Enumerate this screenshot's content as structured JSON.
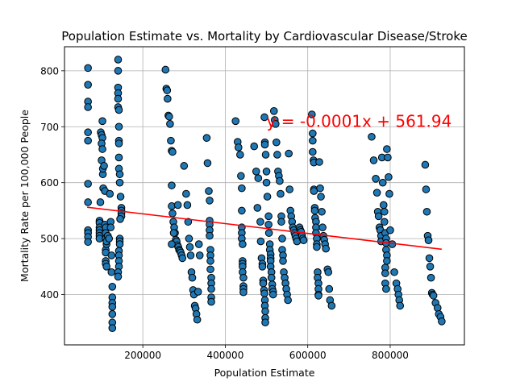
{
  "chart_data": {
    "type": "scatter",
    "title": "Population Estimate vs. Mortality by Cardiovascular Disease/Stroke",
    "xlabel": "Population Estimate",
    "ylabel": "Mortality Rate per 100,000 People",
    "xlim": [
      10000,
      980000
    ],
    "ylim": [
      310,
      843
    ],
    "xticks": [
      200000,
      400000,
      600000,
      800000
    ],
    "xtick_labels": [
      "200000",
      "400000",
      "600000",
      "800000"
    ],
    "yticks": [
      400,
      500,
      600,
      700,
      800
    ],
    "ytick_labels": [
      "400",
      "500",
      "600",
      "700",
      "800"
    ],
    "grid": true,
    "marker_color": "#1f77b4",
    "regression": {
      "equation": "y = -0.0001x + 561.94",
      "x_start": 65000,
      "x_end": 925000,
      "y_start": 556,
      "y_end": 481,
      "color": "#ff0000",
      "label_x": 500000,
      "label_y": 700
    },
    "points": [
      [
        67000,
        805
      ],
      [
        67000,
        775
      ],
      [
        67000,
        745
      ],
      [
        67000,
        735
      ],
      [
        67000,
        690
      ],
      [
        67000,
        675
      ],
      [
        67000,
        598
      ],
      [
        67000,
        565
      ],
      [
        67000,
        515
      ],
      [
        67000,
        510
      ],
      [
        67000,
        503
      ],
      [
        67000,
        494
      ],
      [
        95000,
        532
      ],
      [
        95000,
        528
      ],
      [
        95000,
        520
      ],
      [
        95000,
        515
      ],
      [
        95000,
        510
      ],
      [
        95000,
        505
      ],
      [
        95000,
        500
      ],
      [
        97000,
        565
      ],
      [
        98000,
        690
      ],
      [
        100000,
        685
      ],
      [
        102000,
        710
      ],
      [
        102000,
        680
      ],
      [
        100000,
        670
      ],
      [
        102000,
        660
      ],
      [
        100000,
        640
      ],
      [
        103000,
        615
      ],
      [
        103000,
        625
      ],
      [
        104000,
        590
      ],
      [
        106000,
        630
      ],
      [
        108000,
        585
      ],
      [
        108000,
        525
      ],
      [
        110000,
        520
      ],
      [
        110000,
        510
      ],
      [
        110000,
        500
      ],
      [
        110000,
        480
      ],
      [
        110000,
        475
      ],
      [
        110000,
        460
      ],
      [
        110000,
        455
      ],
      [
        112000,
        450
      ],
      [
        112000,
        490
      ],
      [
        112000,
        495
      ],
      [
        115000,
        505
      ],
      [
        118000,
        500
      ],
      [
        120000,
        580
      ],
      [
        122000,
        530
      ],
      [
        122000,
        520
      ],
      [
        124000,
        470
      ],
      [
        124000,
        440
      ],
      [
        126000,
        414
      ],
      [
        126000,
        395
      ],
      [
        126000,
        385
      ],
      [
        126000,
        378
      ],
      [
        126000,
        365
      ],
      [
        126000,
        350
      ],
      [
        126000,
        340
      ],
      [
        140000,
        820
      ],
      [
        140000,
        800
      ],
      [
        140000,
        770
      ],
      [
        140000,
        760
      ],
      [
        140000,
        750
      ],
      [
        140000,
        735
      ],
      [
        142000,
        730
      ],
      [
        142000,
        700
      ],
      [
        142000,
        675
      ],
      [
        142000,
        670
      ],
      [
        142000,
        645
      ],
      [
        142000,
        625
      ],
      [
        144000,
        615
      ],
      [
        144000,
        600
      ],
      [
        146000,
        575
      ],
      [
        148000,
        555
      ],
      [
        148000,
        550
      ],
      [
        148000,
        545
      ],
      [
        148000,
        540
      ],
      [
        145000,
        535
      ],
      [
        144000,
        500
      ],
      [
        144000,
        495
      ],
      [
        144000,
        490
      ],
      [
        142000,
        478
      ],
      [
        142000,
        470
      ],
      [
        142000,
        460
      ],
      [
        142000,
        450
      ],
      [
        140000,
        440
      ],
      [
        140000,
        432
      ],
      [
        255000,
        802
      ],
      [
        257000,
        768
      ],
      [
        259000,
        765
      ],
      [
        260000,
        750
      ],
      [
        262000,
        720
      ],
      [
        264000,
        718
      ],
      [
        266000,
        705
      ],
      [
        268000,
        675
      ],
      [
        270000,
        657
      ],
      [
        272000,
        655
      ],
      [
        270000,
        595
      ],
      [
        270000,
        558
      ],
      [
        272000,
        545
      ],
      [
        274000,
        530
      ],
      [
        276000,
        520
      ],
      [
        278000,
        510
      ],
      [
        280000,
        498
      ],
      [
        282000,
        495
      ],
      [
        284000,
        488
      ],
      [
        286000,
        485
      ],
      [
        288000,
        480
      ],
      [
        290000,
        478
      ],
      [
        292000,
        475
      ],
      [
        294000,
        470
      ],
      [
        296000,
        465
      ],
      [
        270000,
        490
      ],
      [
        275000,
        510
      ],
      [
        285000,
        560
      ],
      [
        300000,
        630
      ],
      [
        305000,
        580
      ],
      [
        308000,
        560
      ],
      [
        310000,
        530
      ],
      [
        312000,
        500
      ],
      [
        314000,
        485
      ],
      [
        316000,
        470
      ],
      [
        318000,
        440
      ],
      [
        320000,
        430
      ],
      [
        322000,
        408
      ],
      [
        324000,
        400
      ],
      [
        326000,
        380
      ],
      [
        328000,
        375
      ],
      [
        330000,
        365
      ],
      [
        332000,
        355
      ],
      [
        334000,
        405
      ],
      [
        336000,
        490
      ],
      [
        338000,
        470
      ],
      [
        355000,
        680
      ],
      [
        357000,
        635
      ],
      [
        360000,
        585
      ],
      [
        362000,
        568
      ],
      [
        362000,
        532
      ],
      [
        362000,
        525
      ],
      [
        362000,
        515
      ],
      [
        362000,
        505
      ],
      [
        364000,
        480
      ],
      [
        364000,
        470
      ],
      [
        364000,
        460
      ],
      [
        364000,
        445
      ],
      [
        366000,
        430
      ],
      [
        366000,
        420
      ],
      [
        366000,
        410
      ],
      [
        366000,
        395
      ],
      [
        366000,
        387
      ],
      [
        425000,
        710
      ],
      [
        430000,
        673
      ],
      [
        432000,
        663
      ],
      [
        436000,
        650
      ],
      [
        438000,
        612
      ],
      [
        440000,
        590
      ],
      [
        440000,
        550
      ],
      [
        440000,
        520
      ],
      [
        440000,
        510
      ],
      [
        440000,
        500
      ],
      [
        442000,
        490
      ],
      [
        442000,
        460
      ],
      [
        442000,
        455
      ],
      [
        442000,
        450
      ],
      [
        442000,
        440
      ],
      [
        444000,
        430
      ],
      [
        444000,
        415
      ],
      [
        444000,
        410
      ],
      [
        444000,
        404
      ],
      [
        470000,
        665
      ],
      [
        475000,
        620
      ],
      [
        478000,
        555
      ],
      [
        480000,
        608
      ],
      [
        485000,
        530
      ],
      [
        486000,
        495
      ],
      [
        488000,
        465
      ],
      [
        490000,
        455
      ],
      [
        490000,
        450
      ],
      [
        492000,
        425
      ],
      [
        492000,
        420
      ],
      [
        494000,
        408
      ],
      [
        495000,
        402
      ],
      [
        496000,
        390
      ],
      [
        496000,
        380
      ],
      [
        497000,
        370
      ],
      [
        497000,
        358
      ],
      [
        497000,
        350
      ],
      [
        495000,
        717
      ],
      [
        496000,
        672
      ],
      [
        496000,
        668
      ],
      [
        498000,
        650
      ],
      [
        500000,
        620
      ],
      [
        500000,
        600
      ],
      [
        502000,
        575
      ],
      [
        505000,
        540
      ],
      [
        505000,
        525
      ],
      [
        506000,
        510
      ],
      [
        508000,
        490
      ],
      [
        508000,
        480
      ],
      [
        510000,
        472
      ],
      [
        510000,
        465
      ],
      [
        510000,
        460
      ],
      [
        510000,
        450
      ],
      [
        512000,
        440
      ],
      [
        512000,
        430
      ],
      [
        514000,
        418
      ],
      [
        514000,
        410
      ],
      [
        516000,
        405
      ],
      [
        516000,
        400
      ],
      [
        518000,
        728
      ],
      [
        520000,
        712
      ],
      [
        522000,
        705
      ],
      [
        524000,
        672
      ],
      [
        526000,
        650
      ],
      [
        528000,
        620
      ],
      [
        530000,
        612
      ],
      [
        532000,
        603
      ],
      [
        534000,
        580
      ],
      [
        536000,
        540
      ],
      [
        536000,
        530
      ],
      [
        538000,
        500
      ],
      [
        538000,
        480
      ],
      [
        540000,
        470
      ],
      [
        540000,
        460
      ],
      [
        542000,
        440
      ],
      [
        544000,
        430
      ],
      [
        546000,
        420
      ],
      [
        548000,
        410
      ],
      [
        550000,
        400
      ],
      [
        552000,
        390
      ],
      [
        554000,
        652
      ],
      [
        556000,
        588
      ],
      [
        558000,
        550
      ],
      [
        560000,
        540
      ],
      [
        562000,
        530
      ],
      [
        564000,
        520
      ],
      [
        566000,
        515
      ],
      [
        568000,
        510
      ],
      [
        570000,
        505
      ],
      [
        572000,
        500
      ],
      [
        574000,
        495
      ],
      [
        580000,
        520
      ],
      [
        582000,
        515
      ],
      [
        584000,
        512
      ],
      [
        586000,
        505
      ],
      [
        588000,
        500
      ],
      [
        590000,
        497
      ],
      [
        610000,
        722
      ],
      [
        612000,
        688
      ],
      [
        612000,
        675
      ],
      [
        612000,
        655
      ],
      [
        614000,
        640
      ],
      [
        615000,
        636
      ],
      [
        615000,
        588
      ],
      [
        615000,
        585
      ],
      [
        617000,
        555
      ],
      [
        617000,
        550
      ],
      [
        618000,
        537
      ],
      [
        620000,
        530
      ],
      [
        620000,
        520
      ],
      [
        620000,
        510
      ],
      [
        622000,
        500
      ],
      [
        622000,
        490
      ],
      [
        622000,
        485
      ],
      [
        624000,
        440
      ],
      [
        624000,
        430
      ],
      [
        626000,
        420
      ],
      [
        626000,
        410
      ],
      [
        626000,
        400
      ],
      [
        626000,
        398
      ],
      [
        628000,
        637
      ],
      [
        630000,
        590
      ],
      [
        632000,
        575
      ],
      [
        634000,
        548
      ],
      [
        636000,
        520
      ],
      [
        638000,
        505
      ],
      [
        640000,
        498
      ],
      [
        642000,
        490
      ],
      [
        644000,
        482
      ],
      [
        648000,
        445
      ],
      [
        650000,
        440
      ],
      [
        652000,
        410
      ],
      [
        654000,
        390
      ],
      [
        658000,
        380
      ],
      [
        755000,
        682
      ],
      [
        760000,
        640
      ],
      [
        765000,
        607
      ],
      [
        768000,
        582
      ],
      [
        770000,
        548
      ],
      [
        772000,
        540
      ],
      [
        774000,
        520
      ],
      [
        776000,
        515
      ],
      [
        778000,
        505
      ],
      [
        778000,
        495
      ],
      [
        780000,
        645
      ],
      [
        782000,
        600
      ],
      [
        784000,
        560
      ],
      [
        786000,
        548
      ],
      [
        786000,
        530
      ],
      [
        788000,
        510
      ],
      [
        790000,
        500
      ],
      [
        790000,
        492
      ],
      [
        790000,
        480
      ],
      [
        792000,
        470
      ],
      [
        792000,
        460
      ],
      [
        788000,
        448
      ],
      [
        788000,
        438
      ],
      [
        788000,
        420
      ],
      [
        790000,
        410
      ],
      [
        792000,
        660
      ],
      [
        794000,
        645
      ],
      [
        796000,
        610
      ],
      [
        798000,
        580
      ],
      [
        800000,
        515
      ],
      [
        805000,
        490
      ],
      [
        810000,
        440
      ],
      [
        815000,
        420
      ],
      [
        818000,
        410
      ],
      [
        820000,
        400
      ],
      [
        822000,
        390
      ],
      [
        824000,
        380
      ],
      [
        885000,
        632
      ],
      [
        887000,
        588
      ],
      [
        889000,
        548
      ],
      [
        891000,
        505
      ],
      [
        893000,
        497
      ],
      [
        895000,
        465
      ],
      [
        897000,
        450
      ],
      [
        899000,
        430
      ],
      [
        901000,
        403
      ],
      [
        903000,
        400
      ],
      [
        905000,
        398
      ],
      [
        910000,
        385
      ],
      [
        915000,
        376
      ],
      [
        918000,
        365
      ],
      [
        922000,
        360
      ],
      [
        925000,
        352
      ]
    ]
  }
}
